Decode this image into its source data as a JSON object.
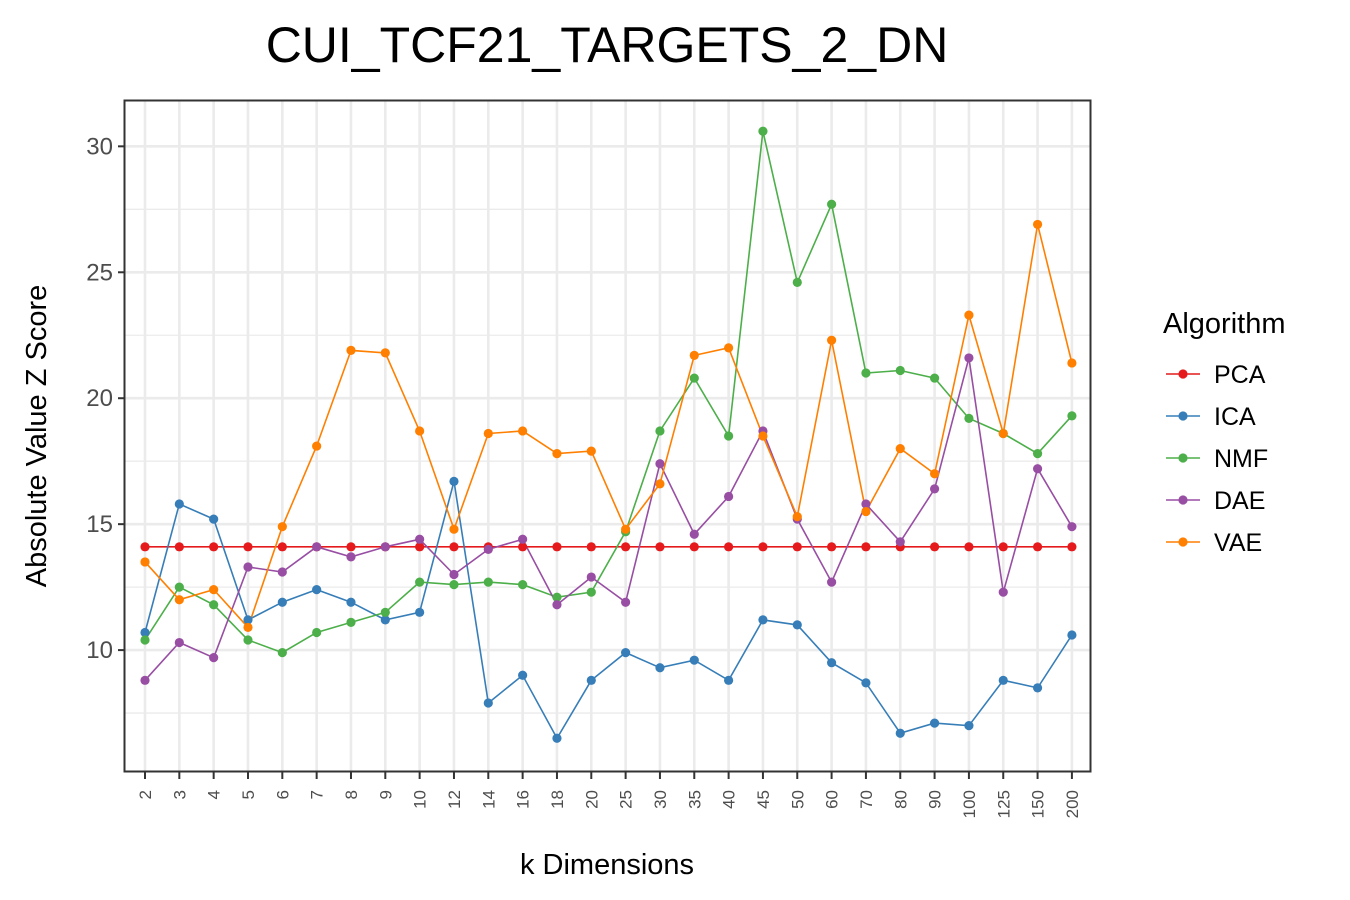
{
  "chart_data": {
    "type": "line",
    "title": "CUI_TCF21_TARGETS_2_DN",
    "xlabel": "k Dimensions",
    "ylabel": "Absolute Value Z Score",
    "x_categories": [
      "2",
      "3",
      "4",
      "5",
      "6",
      "7",
      "8",
      "9",
      "10",
      "12",
      "14",
      "16",
      "18",
      "20",
      "25",
      "30",
      "35",
      "40",
      "45",
      "50",
      "60",
      "70",
      "80",
      "90",
      "100",
      "125",
      "150",
      "200"
    ],
    "y_ticks": [
      10,
      15,
      20,
      25,
      30
    ],
    "ylim": [
      5.2,
      31.8
    ],
    "grid": true,
    "legend": {
      "title": "Algorithm",
      "position": "right"
    },
    "series": [
      {
        "name": "PCA",
        "color": "#e41a1c",
        "values": [
          14.1,
          14.1,
          14.1,
          14.1,
          14.1,
          14.1,
          14.1,
          14.1,
          14.1,
          14.1,
          14.1,
          14.1,
          14.1,
          14.1,
          14.1,
          14.1,
          14.1,
          14.1,
          14.1,
          14.1,
          14.1,
          14.1,
          14.1,
          14.1,
          14.1,
          14.1,
          14.1,
          14.1
        ]
      },
      {
        "name": "ICA",
        "color": "#377eb8",
        "values": [
          10.7,
          15.8,
          15.2,
          11.2,
          11.9,
          12.4,
          11.9,
          11.2,
          11.5,
          16.7,
          7.9,
          9.0,
          6.5,
          8.8,
          9.9,
          9.3,
          9.6,
          8.8,
          11.2,
          11.0,
          9.5,
          8.7,
          6.7,
          7.1,
          7.0,
          8.8,
          8.5,
          10.6
        ]
      },
      {
        "name": "NMF",
        "color": "#4daf4a",
        "values": [
          10.4,
          12.5,
          11.8,
          10.4,
          9.9,
          10.7,
          11.1,
          11.5,
          12.7,
          12.6,
          12.7,
          12.6,
          12.1,
          12.3,
          14.7,
          18.7,
          20.8,
          18.5,
          30.6,
          24.6,
          27.7,
          21.0,
          21.1,
          20.8,
          19.2,
          18.6,
          17.8,
          19.3
        ]
      },
      {
        "name": "DAE",
        "color": "#984ea3",
        "values": [
          8.8,
          10.3,
          9.7,
          13.3,
          13.1,
          14.1,
          13.7,
          14.1,
          14.4,
          13.0,
          14.0,
          14.4,
          11.8,
          12.9,
          11.9,
          17.4,
          14.6,
          16.1,
          18.7,
          15.2,
          12.7,
          15.8,
          14.3,
          16.4,
          21.6,
          12.3,
          17.2,
          14.9
        ]
      },
      {
        "name": "VAE",
        "color": "#ff7f00",
        "values": [
          13.5,
          12.0,
          12.4,
          10.9,
          14.9,
          18.1,
          21.9,
          21.8,
          18.7,
          14.8,
          18.6,
          18.7,
          17.8,
          17.9,
          14.8,
          16.6,
          21.7,
          22.0,
          18.5,
          15.3,
          22.3,
          15.5,
          18.0,
          17.0,
          23.3,
          18.6,
          26.9,
          21.4
        ]
      }
    ]
  }
}
